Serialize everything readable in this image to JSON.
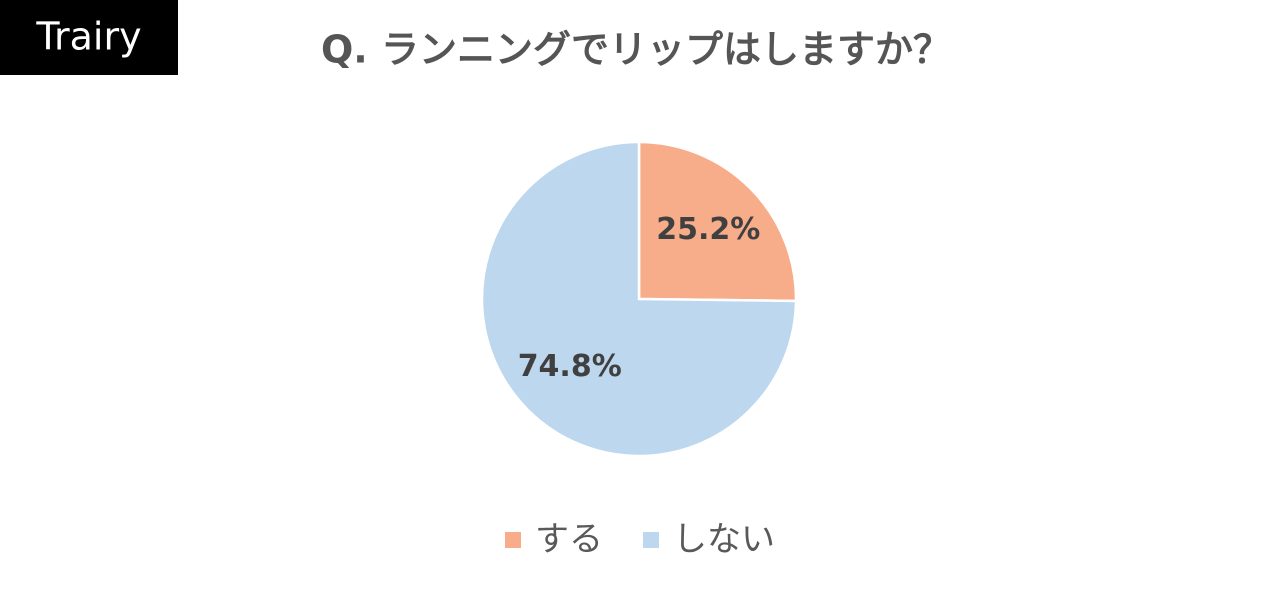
{
  "logo": "Trairy",
  "chart_data": {
    "type": "pie",
    "title": "Q. ランニングでリップはしますか？",
    "categories": [
      "する",
      "しない"
    ],
    "values": [
      25.2,
      74.8
    ],
    "value_labels": [
      "25.2%",
      "74.8%"
    ],
    "colors": [
      "#f8ad8a",
      "#bdd7ee"
    ],
    "legend": "bottom"
  }
}
